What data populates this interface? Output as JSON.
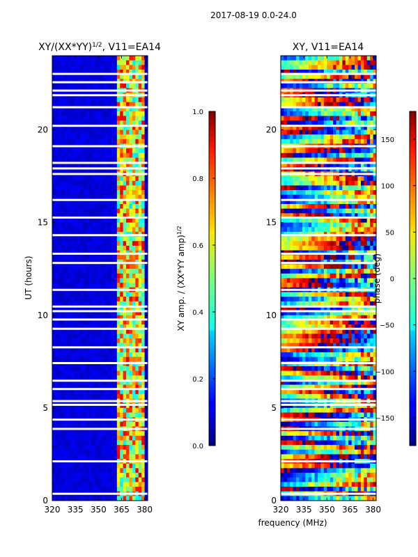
{
  "suptitle": "2017-08-19 0.0-24.0",
  "chart_data": [
    {
      "type": "heatmap",
      "title": "XY/(XX*YY)",
      "title_exponent": "1/2",
      "title_suffix": ", V11=EA14",
      "xlabel": "",
      "ylabel": "UT (hours)",
      "xlim": [
        320,
        382
      ],
      "ylim": [
        0,
        24
      ],
      "xticks": [
        320,
        335,
        350,
        365,
        380
      ],
      "yticks": [
        0,
        5,
        10,
        15,
        20
      ],
      "colorbar": {
        "label": "XY amp. / (XX*YY amp)",
        "label_exponent": "1/2",
        "range": [
          0.0,
          1.0
        ],
        "ticks": [
          "0.0",
          "0.2",
          "0.4",
          "0.6",
          "0.8",
          "1.0"
        ],
        "colormap": "jet"
      },
      "description": "background amplitude ~0.1 across 320-360 MHz; elevated amplitudes 0.4-0.9 in vertical stripes near 362-381 MHz",
      "stripe_bands_mhz": [
        [
          362,
          365
        ],
        [
          366,
          369
        ],
        [
          370,
          373
        ],
        [
          374,
          376
        ],
        [
          377,
          380
        ]
      ]
    },
    {
      "type": "heatmap",
      "title": "XY, V11=EA14",
      "xlabel": "frequency (MHz)",
      "ylabel": "",
      "xlim": [
        320,
        382
      ],
      "ylim": [
        0,
        24
      ],
      "xticks": [
        320,
        335,
        350,
        365,
        380
      ],
      "yticks": [
        0,
        5,
        10,
        15,
        20
      ],
      "colorbar": {
        "label": "phase (deg)",
        "range": [
          -180,
          180
        ],
        "ticks": [
          "150",
          "100",
          "50",
          "0",
          "−50",
          "−100",
          "−150"
        ],
        "colormap": "jet"
      },
      "description": "XY phase varying in horizontal bands with time, values spanning -180 to 180 deg"
    }
  ]
}
